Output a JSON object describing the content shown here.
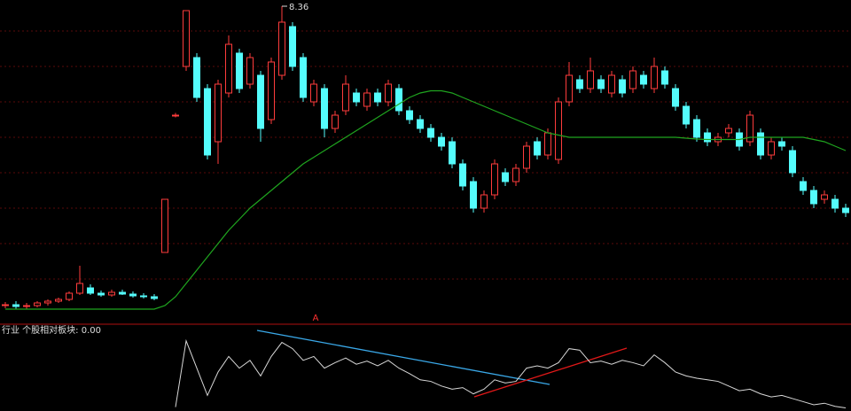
{
  "chart_data": {
    "type": "candlestick",
    "open": [
      1.6,
      1.62,
      1.58,
      1.6,
      1.66,
      1.7,
      1.74,
      1.88,
      2.0,
      1.88,
      1.84,
      1.9,
      1.86,
      1.82,
      1.8,
      2.8,
      5.9,
      7.0,
      7.2,
      6.5,
      5.3,
      6.4,
      7.3,
      6.6,
      6.8,
      5.8,
      6.8,
      7.9,
      7.2,
      6.2,
      6.5,
      5.6,
      6.0,
      6.4,
      6.1,
      6.4,
      6.2,
      6.5,
      6.0,
      5.8,
      5.6,
      5.4,
      5.3,
      4.8,
      4.4,
      3.8,
      4.1,
      4.6,
      4.4,
      4.7,
      5.3,
      5.0,
      4.9,
      6.2,
      6.7,
      6.5,
      6.7,
      6.4,
      6.7,
      6.5,
      6.8,
      6.5,
      6.9,
      6.5,
      6.1,
      5.8,
      5.5,
      5.3,
      5.5,
      5.5,
      5.3,
      5.5,
      5.0,
      5.3,
      5.1,
      4.4,
      4.2,
      4.0,
      4.0,
      3.8
    ],
    "high": [
      1.68,
      1.7,
      1.66,
      1.7,
      1.74,
      1.78,
      1.92,
      2.5,
      2.08,
      1.94,
      1.96,
      1.96,
      1.92,
      1.88,
      1.86,
      4.0,
      5.95,
      8.26,
      7.3,
      6.6,
      6.7,
      7.7,
      7.4,
      7.3,
      6.9,
      7.2,
      8.36,
      8.0,
      7.3,
      6.7,
      6.6,
      6.0,
      6.8,
      6.5,
      6.5,
      6.5,
      6.7,
      6.6,
      6.1,
      5.9,
      5.7,
      5.5,
      5.4,
      4.9,
      4.5,
      4.2,
      4.9,
      4.7,
      4.8,
      5.3,
      5.4,
      5.6,
      6.3,
      7.1,
      6.8,
      7.2,
      6.8,
      6.9,
      6.8,
      7.0,
      6.9,
      7.2,
      7.0,
      6.6,
      6.2,
      5.9,
      5.6,
      5.5,
      5.7,
      5.6,
      6.0,
      5.6,
      5.4,
      5.4,
      5.2,
      4.5,
      4.3,
      4.2,
      4.1,
      3.9
    ],
    "low": [
      1.54,
      1.52,
      1.52,
      1.56,
      1.6,
      1.66,
      1.7,
      1.84,
      1.84,
      1.8,
      1.8,
      1.84,
      1.78,
      1.76,
      1.72,
      2.8,
      5.85,
      6.9,
      6.2,
      4.9,
      4.8,
      6.3,
      6.4,
      6.5,
      5.3,
      5.7,
      6.7,
      6.9,
      6.2,
      6.1,
      5.4,
      5.5,
      5.9,
      6.1,
      6.0,
      6.1,
      6.1,
      5.9,
      5.7,
      5.5,
      5.3,
      5.1,
      4.7,
      4.2,
      3.7,
      3.7,
      4.0,
      4.3,
      4.3,
      4.6,
      4.9,
      4.9,
      4.8,
      6.1,
      6.4,
      6.4,
      6.4,
      6.3,
      6.3,
      6.4,
      6.5,
      6.4,
      6.5,
      6.0,
      5.6,
      5.3,
      5.2,
      5.2,
      5.4,
      5.1,
      5.2,
      4.9,
      4.9,
      5.1,
      4.5,
      4.1,
      3.8,
      3.9,
      3.7,
      3.6
    ],
    "close": [
      1.62,
      1.58,
      1.6,
      1.66,
      1.7,
      1.74,
      1.88,
      2.1,
      1.88,
      1.84,
      1.9,
      1.86,
      1.82,
      1.8,
      1.76,
      4.0,
      5.9,
      8.26,
      6.3,
      5.0,
      6.6,
      7.5,
      6.5,
      7.2,
      5.6,
      7.1,
      8.0,
      7.0,
      6.3,
      6.6,
      5.6,
      5.9,
      6.6,
      6.2,
      6.4,
      6.2,
      6.6,
      6.0,
      5.8,
      5.6,
      5.4,
      5.2,
      4.8,
      4.3,
      3.8,
      4.1,
      4.8,
      4.4,
      4.7,
      5.2,
      5.0,
      5.5,
      6.2,
      6.8,
      6.5,
      6.9,
      6.5,
      6.8,
      6.4,
      6.9,
      6.6,
      7.0,
      6.6,
      6.1,
      5.7,
      5.4,
      5.3,
      5.4,
      5.6,
      5.2,
      5.9,
      5.0,
      5.3,
      5.2,
      4.6,
      4.2,
      3.9,
      4.1,
      3.8,
      3.7
    ],
    "ma": [
      1.52,
      1.52,
      1.52,
      1.52,
      1.52,
      1.52,
      1.52,
      1.52,
      1.52,
      1.52,
      1.52,
      1.52,
      1.52,
      1.52,
      1.52,
      1.6,
      1.8,
      2.1,
      2.4,
      2.7,
      3.0,
      3.3,
      3.55,
      3.8,
      4.0,
      4.2,
      4.4,
      4.6,
      4.8,
      4.95,
      5.1,
      5.25,
      5.4,
      5.55,
      5.7,
      5.85,
      6.0,
      6.15,
      6.3,
      6.4,
      6.45,
      6.45,
      6.4,
      6.3,
      6.2,
      6.1,
      6.0,
      5.9,
      5.8,
      5.7,
      5.6,
      5.5,
      5.45,
      5.4,
      5.4,
      5.4,
      5.4,
      5.4,
      5.4,
      5.4,
      5.4,
      5.4,
      5.4,
      5.4,
      5.38,
      5.36,
      5.35,
      5.35,
      5.35,
      5.35,
      5.4,
      5.4,
      5.4,
      5.4,
      5.4,
      5.4,
      5.35,
      5.3,
      5.2,
      5.1
    ],
    "up_color": "#ff3c3c",
    "down_color": "#54fcfc",
    "ma_color": "#1fa51f",
    "ylim": [
      1.2,
      8.5
    ],
    "yticks": [
      2.2,
      3.0,
      3.8,
      4.6,
      5.4,
      6.2,
      7.0,
      7.8
    ],
    "grid": true,
    "marker_label": "A",
    "indicator": {
      "name": "行业 个股相对板块: 0.00",
      "color": "#d8d8d8",
      "ylim": [
        0,
        100
      ],
      "values": [
        null,
        null,
        null,
        null,
        null,
        null,
        null,
        null,
        null,
        null,
        null,
        null,
        null,
        null,
        null,
        null,
        5,
        90,
        55,
        20,
        50,
        70,
        55,
        65,
        45,
        70,
        88,
        80,
        65,
        70,
        55,
        62,
        68,
        60,
        64,
        58,
        65,
        55,
        48,
        40,
        38,
        32,
        28,
        30,
        22,
        28,
        40,
        36,
        38,
        55,
        58,
        55,
        62,
        80,
        78,
        62,
        64,
        60,
        65,
        62,
        58,
        72,
        62,
        50,
        45,
        42,
        40,
        38,
        32,
        26,
        28,
        22,
        18,
        20,
        16,
        12,
        8,
        10,
        6,
        4
      ]
    }
  }
}
